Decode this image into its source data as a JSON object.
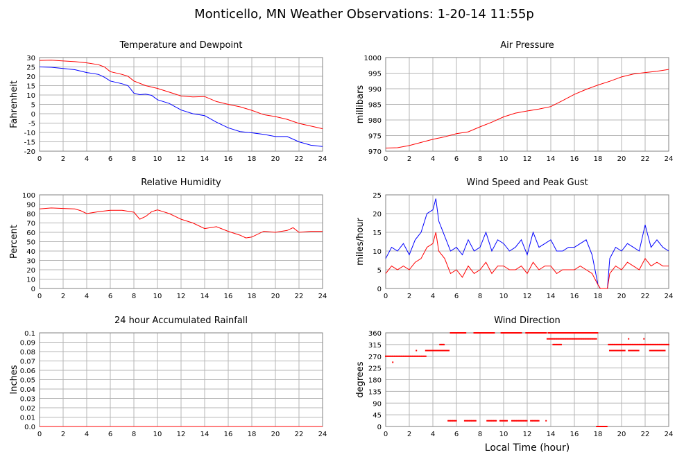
{
  "page": {
    "title": "Monticello, MN Weather Observations: 1-20-14 11:55p",
    "xlabel_bottom": "Local Time (hour)"
  },
  "colors": {
    "red": "#ff0000",
    "blue": "#0000ff",
    "grid": "#b4b4b4",
    "frame": "#808080",
    "text": "#000000"
  },
  "chart_data": [
    {
      "id": "temp",
      "type": "line",
      "title": "Temperature and Dewpoint",
      "ylabel": "Fahrenheit",
      "xlim": [
        0,
        24
      ],
      "ylim": [
        -20,
        30
      ],
      "xticks": [
        0,
        2,
        4,
        6,
        8,
        10,
        12,
        14,
        16,
        18,
        20,
        22,
        24
      ],
      "yticks": [
        -20,
        -15,
        -10,
        -5,
        0,
        5,
        10,
        15,
        20,
        25,
        30
      ],
      "grid": true,
      "series": [
        {
          "color": "red",
          "x": [
            0,
            1,
            2,
            3,
            4,
            5,
            5.5,
            6,
            7,
            7.5,
            8,
            9,
            10,
            11,
            12,
            13,
            14,
            15,
            16,
            17,
            18,
            19,
            20,
            21,
            22,
            23,
            24
          ],
          "y": [
            28.5,
            28.6,
            28.2,
            27.8,
            27.2,
            26.2,
            25,
            22.5,
            21,
            20,
            17.5,
            15,
            13.5,
            11.5,
            9.5,
            9,
            9.2,
            6.5,
            5,
            3.7,
            1.8,
            -0.5,
            -1.5,
            -3,
            -5.2,
            -6.6,
            -8
          ]
        },
        {
          "color": "blue",
          "x": [
            0,
            1,
            2,
            3,
            4,
            5,
            5.5,
            6,
            7,
            7.5,
            8,
            8.5,
            9,
            9.5,
            10,
            11,
            12,
            13,
            14,
            15,
            16,
            17,
            18,
            19,
            20,
            21,
            22,
            23,
            24
          ],
          "y": [
            25,
            24.8,
            24.2,
            23.5,
            22,
            21,
            19.5,
            17.5,
            16,
            15,
            11,
            10.2,
            10.5,
            9.8,
            7.5,
            5.5,
            2,
            0,
            -1,
            -4.5,
            -7.5,
            -9.5,
            -10.2,
            -11,
            -12.2,
            -12.2,
            -15,
            -16.8,
            -17.5
          ]
        }
      ]
    },
    {
      "id": "pressure",
      "type": "line",
      "title": "Air Pressure",
      "ylabel": "millibars",
      "xlim": [
        0,
        24
      ],
      "ylim": [
        970,
        1000
      ],
      "xticks": [
        0,
        2,
        4,
        6,
        8,
        10,
        12,
        14,
        16,
        18,
        20,
        22,
        24
      ],
      "yticks": [
        970,
        975,
        980,
        985,
        990,
        995,
        1000
      ],
      "grid": true,
      "series": [
        {
          "color": "red",
          "x": [
            0,
            1,
            2,
            3,
            4,
            5,
            6,
            7,
            8,
            9,
            10,
            11,
            12,
            13,
            14,
            15,
            16,
            17,
            18,
            19,
            20,
            21,
            22,
            23,
            24
          ],
          "y": [
            971,
            971.1,
            971.8,
            972.8,
            973.8,
            974.6,
            975.6,
            976.2,
            977.8,
            979.3,
            981,
            982.2,
            982.9,
            983.5,
            984.3,
            986.2,
            988.2,
            989.8,
            991.2,
            992.4,
            993.8,
            994.7,
            995.2,
            995.6,
            996.2
          ]
        }
      ]
    },
    {
      "id": "humidity",
      "type": "line",
      "title": "Relative Humidity",
      "ylabel": "Percent",
      "xlim": [
        0,
        24
      ],
      "ylim": [
        0,
        100
      ],
      "xticks": [
        0,
        2,
        4,
        6,
        8,
        10,
        12,
        14,
        16,
        18,
        20,
        22,
        24
      ],
      "yticks": [
        0,
        10,
        20,
        30,
        40,
        50,
        60,
        70,
        80,
        90,
        100
      ],
      "grid": true,
      "series": [
        {
          "color": "red",
          "x": [
            0,
            1,
            2,
            3,
            3.5,
            4,
            4.5,
            5,
            6,
            7,
            8,
            8.5,
            9,
            9.5,
            10,
            10.5,
            11,
            12,
            13,
            14,
            14.5,
            15,
            16,
            17,
            17.5,
            18,
            19,
            20,
            21,
            21.5,
            22,
            23,
            24
          ],
          "y": [
            85,
            86,
            85.5,
            85,
            83,
            80,
            81,
            82,
            83.5,
            83.5,
            81.5,
            74,
            77,
            82,
            84,
            82,
            80,
            74,
            70,
            64,
            65,
            66,
            61,
            57,
            54,
            55,
            61,
            60,
            62,
            65,
            60,
            61,
            61
          ]
        }
      ]
    },
    {
      "id": "wind",
      "type": "line",
      "title": "Wind Speed and Peak Gust",
      "ylabel": "miles/hour",
      "xlim": [
        0,
        24
      ],
      "ylim": [
        0,
        25
      ],
      "xticks": [
        0,
        2,
        4,
        6,
        8,
        10,
        12,
        14,
        16,
        18,
        20,
        22,
        24
      ],
      "yticks": [
        0,
        5,
        10,
        15,
        20,
        25
      ],
      "grid": true,
      "series": [
        {
          "color": "blue",
          "x": [
            0,
            0.5,
            1,
            1.5,
            2,
            2.5,
            3,
            3.5,
            4,
            4.25,
            4.5,
            5,
            5.5,
            6,
            6.5,
            7,
            7.5,
            8,
            8.5,
            9,
            9.5,
            10,
            10.5,
            11,
            11.5,
            12,
            12.5,
            13,
            13.5,
            14,
            14.5,
            15,
            15.5,
            16,
            16.5,
            17,
            17.5,
            18,
            18.2,
            18.5,
            18.8,
            19,
            19.5,
            20,
            20.5,
            21,
            21.5,
            22,
            22.5,
            23,
            23.5,
            24
          ],
          "y": [
            8,
            11,
            10,
            12,
            9,
            13,
            15,
            20,
            21,
            24,
            18,
            14,
            10,
            11,
            9,
            13,
            10,
            11,
            15,
            10,
            13,
            12,
            10,
            11,
            13,
            9,
            15,
            11,
            12,
            13,
            10,
            10,
            11,
            11,
            12,
            13,
            9,
            1,
            0,
            0,
            0,
            8,
            11,
            10,
            12,
            11,
            10,
            17,
            11,
            13,
            11,
            10
          ]
        },
        {
          "color": "red",
          "x": [
            0,
            0.5,
            1,
            1.5,
            2,
            2.5,
            3,
            3.5,
            4,
            4.25,
            4.5,
            5,
            5.5,
            6,
            6.5,
            7,
            7.5,
            8,
            8.5,
            9,
            9.5,
            10,
            10.5,
            11,
            11.5,
            12,
            12.5,
            13,
            13.5,
            14,
            14.5,
            15,
            15.5,
            16,
            16.5,
            17,
            17.5,
            18,
            18.2,
            18.5,
            18.8,
            19,
            19.5,
            20,
            20.5,
            21,
            21.5,
            22,
            22.5,
            23,
            23.5,
            24
          ],
          "y": [
            4,
            6,
            5,
            6,
            5,
            7,
            8,
            11,
            12,
            15,
            10,
            8,
            4,
            5,
            3,
            6,
            4,
            5,
            7,
            4,
            6,
            6,
            5,
            5,
            6,
            4,
            7,
            5,
            6,
            6,
            4,
            5,
            5,
            5,
            6,
            5,
            4,
            1,
            0,
            0,
            0,
            4,
            6,
            5,
            7,
            6,
            5,
            8,
            6,
            7,
            6,
            6
          ]
        }
      ]
    },
    {
      "id": "rain",
      "type": "line",
      "title": "24 hour Accumulated Rainfall",
      "ylabel": "Inches",
      "xlim": [
        0,
        24
      ],
      "ylim": [
        0,
        0.1
      ],
      "xticks": [
        0,
        2,
        4,
        6,
        8,
        10,
        12,
        14,
        16,
        18,
        20,
        22,
        24
      ],
      "yticks": [
        "0.0",
        "0.01",
        "0.02",
        "0.03",
        "0.04",
        "0.05",
        "0.06",
        "0.07",
        "0.08",
        "0.09",
        "0.1"
      ],
      "grid": true,
      "series": [
        {
          "color": "red",
          "x": [
            0,
            24
          ],
          "y": [
            0,
            0
          ]
        }
      ]
    },
    {
      "id": "winddir",
      "type": "scatter",
      "title": "Wind Direction",
      "ylabel": "degrees",
      "xlim": [
        0,
        24
      ],
      "ylim": [
        0,
        360
      ],
      "xticks": [
        0,
        2,
        4,
        6,
        8,
        10,
        12,
        14,
        16,
        18,
        20,
        22,
        24
      ],
      "yticks": [
        0,
        45,
        90,
        135,
        180,
        225,
        270,
        315,
        360
      ],
      "grid": true,
      "segments": [
        {
          "x0": 0,
          "x1": 3.4,
          "y": 270
        },
        {
          "x0": 3.4,
          "x1": 5.4,
          "y": 292
        },
        {
          "x0": 4.6,
          "x1": 5.0,
          "y": 315
        },
        {
          "x0": 5.5,
          "x1": 6.8,
          "y": 360
        },
        {
          "x0": 7.5,
          "x1": 9.2,
          "y": 360
        },
        {
          "x0": 9.8,
          "x1": 11.5,
          "y": 360
        },
        {
          "x0": 11.9,
          "x1": 13.6,
          "y": 360
        },
        {
          "x0": 13.8,
          "x1": 18.0,
          "y": 360
        },
        {
          "x0": 13.7,
          "x1": 17.9,
          "y": 337
        },
        {
          "x0": 14.2,
          "x1": 14.9,
          "y": 315
        },
        {
          "x0": 5.3,
          "x1": 6.0,
          "y": 22
        },
        {
          "x0": 6.7,
          "x1": 7.7,
          "y": 22
        },
        {
          "x0": 8.6,
          "x1": 9.4,
          "y": 22
        },
        {
          "x0": 9.7,
          "x1": 10.3,
          "y": 22
        },
        {
          "x0": 10.7,
          "x1": 12.0,
          "y": 22
        },
        {
          "x0": 12.3,
          "x1": 13.0,
          "y": 22
        },
        {
          "x0": 17.9,
          "x1": 18.8,
          "y": 0
        },
        {
          "x0": 18.9,
          "x1": 24.0,
          "y": 315
        },
        {
          "x0": 19.0,
          "x1": 20.3,
          "y": 292
        },
        {
          "x0": 20.6,
          "x1": 21.5,
          "y": 292
        },
        {
          "x0": 22.4,
          "x1": 23.7,
          "y": 292
        }
      ],
      "points": [
        {
          "x": 0.6,
          "y": 247
        },
        {
          "x": 2.6,
          "y": 292
        },
        {
          "x": 13.6,
          "y": 22
        },
        {
          "x": 20.6,
          "y": 337
        },
        {
          "x": 21.9,
          "y": 337
        }
      ]
    }
  ]
}
